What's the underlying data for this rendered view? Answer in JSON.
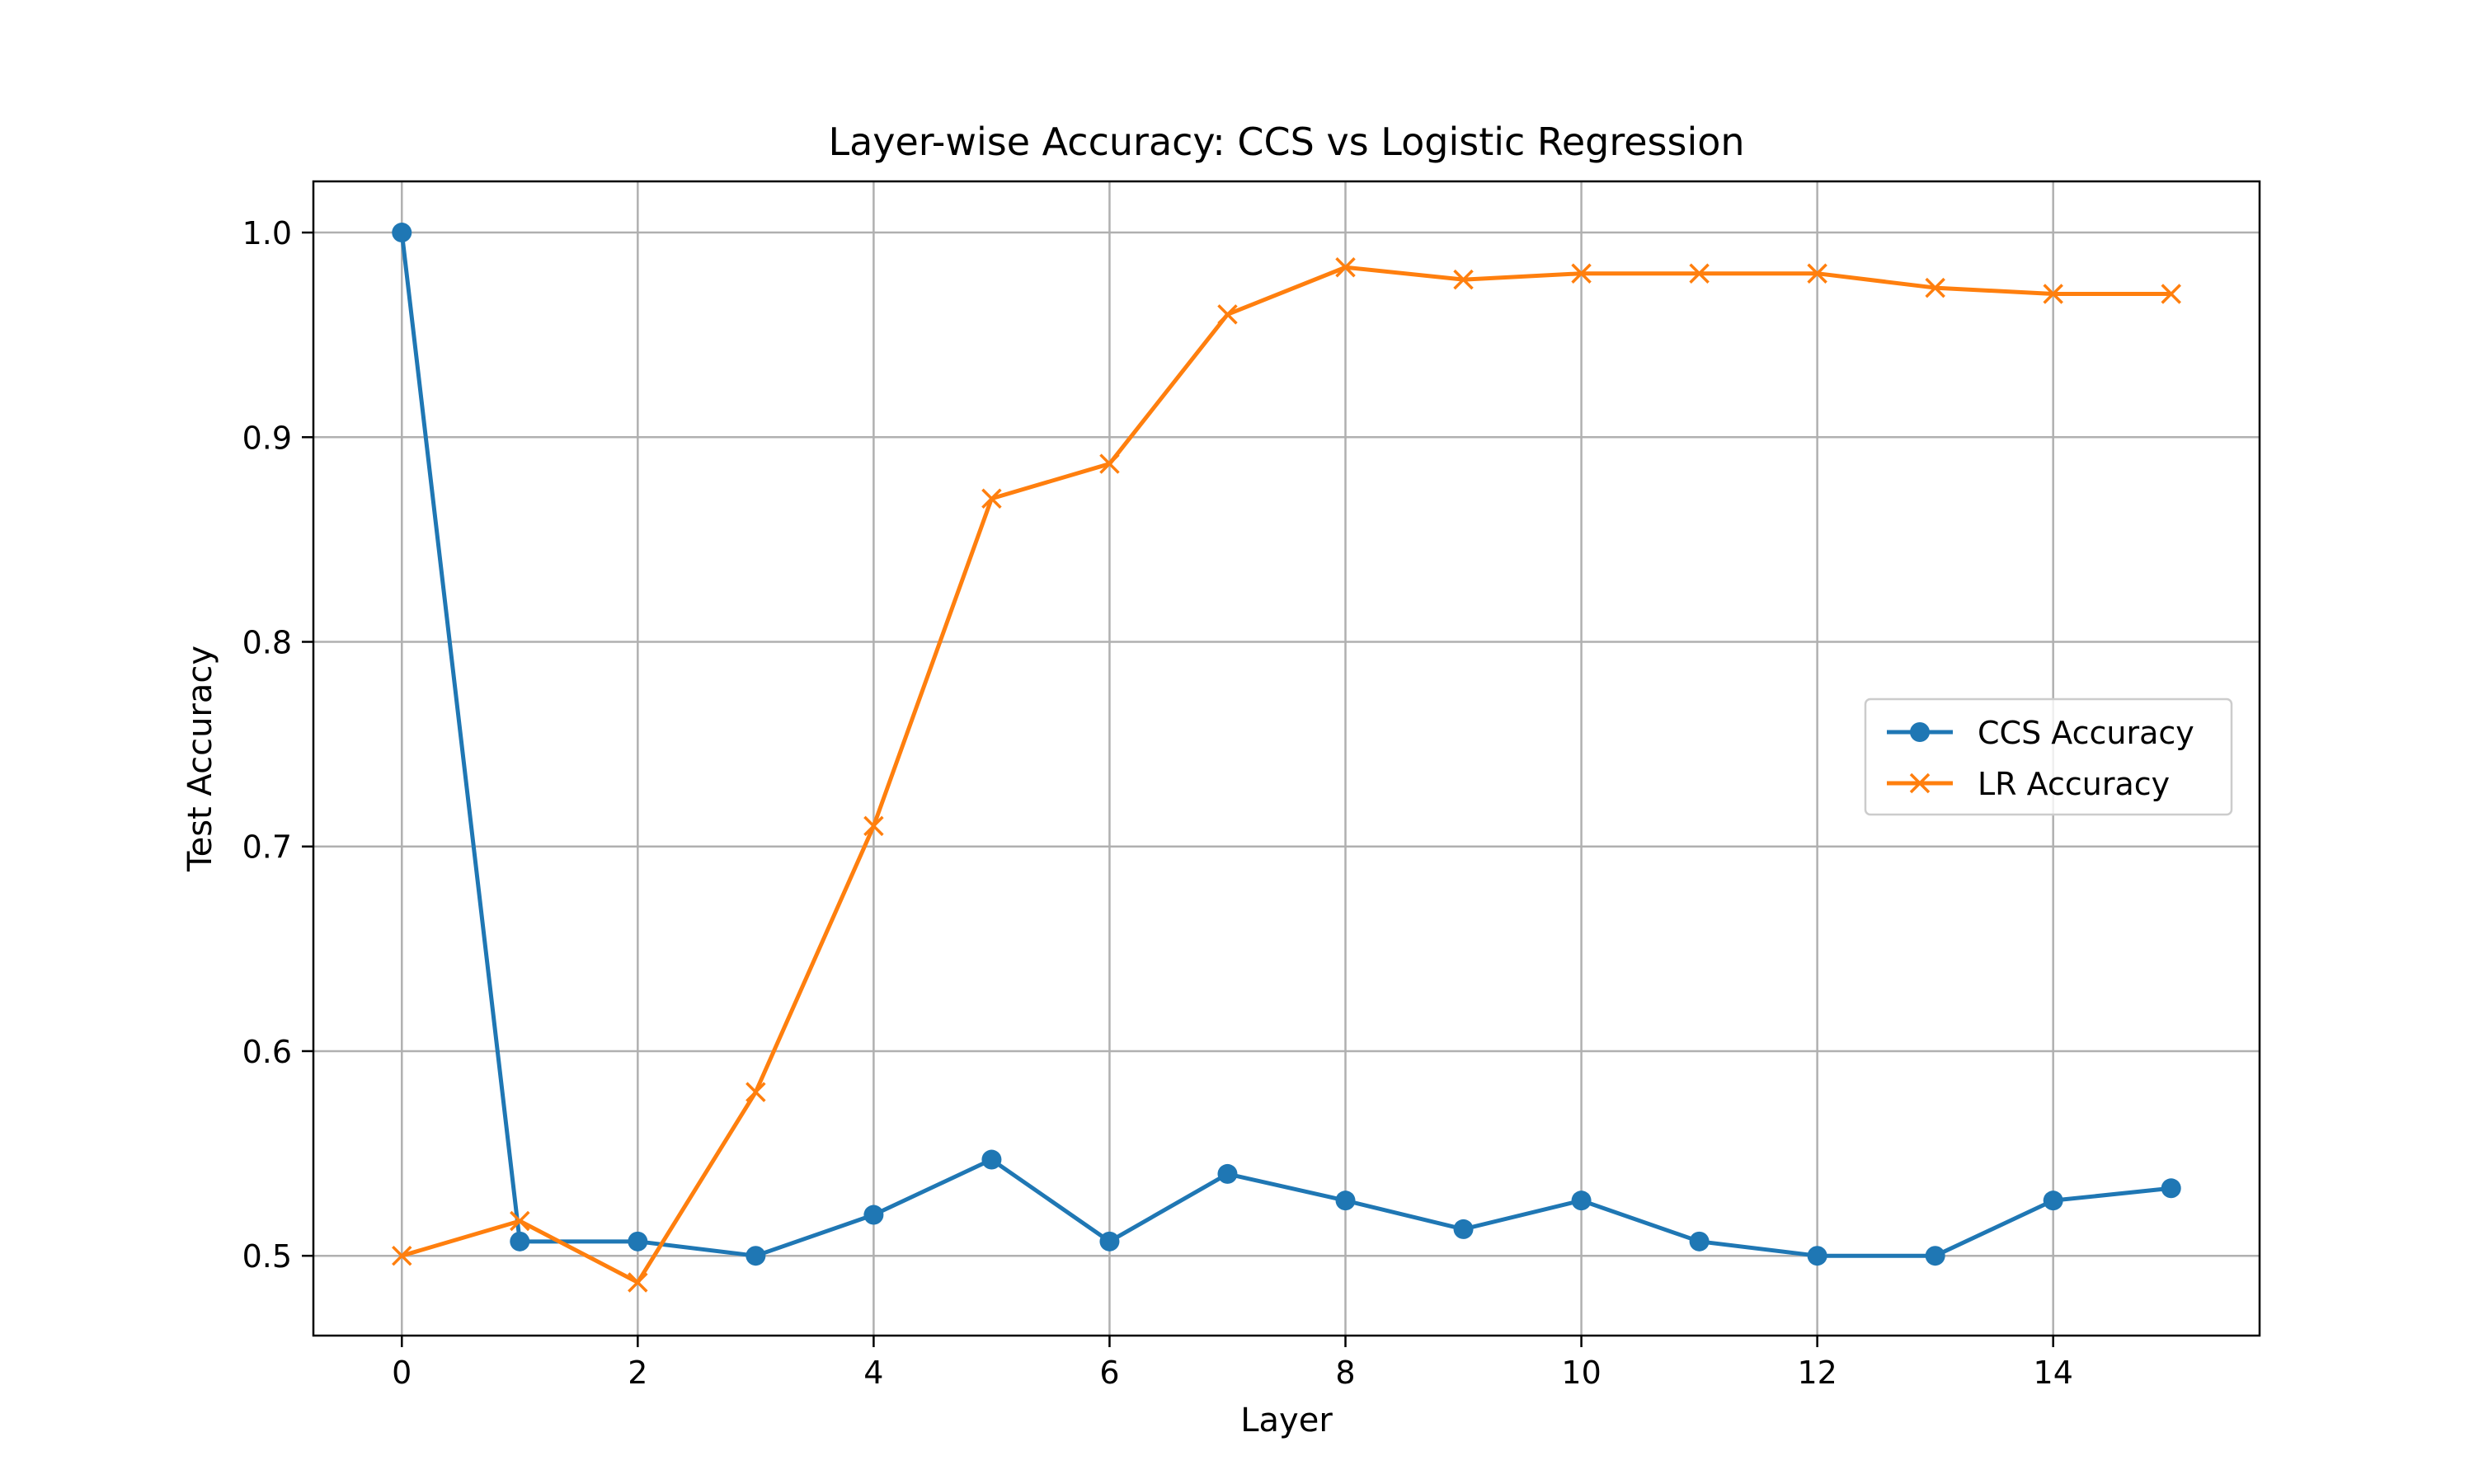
{
  "chart_data": {
    "type": "line",
    "title": "Layer-wise Accuracy: CCS vs Logistic Regression",
    "xlabel": "Layer",
    "ylabel": "Test Accuracy",
    "xlim": [
      -0.75,
      15.75
    ],
    "ylim": [
      0.461,
      1.025
    ],
    "xticks": [
      0,
      2,
      4,
      6,
      8,
      10,
      12,
      14
    ],
    "xtick_labels": [
      "0",
      "2",
      "4",
      "6",
      "8",
      "10",
      "12",
      "14"
    ],
    "yticks": [
      0.5,
      0.6,
      0.7,
      0.8,
      0.9,
      1.0
    ],
    "ytick_labels": [
      "0.5",
      "0.6",
      "0.7",
      "0.8",
      "0.9",
      "1.0"
    ],
    "grid": true,
    "legend_position": "center-right",
    "x": [
      0,
      1,
      2,
      3,
      4,
      5,
      6,
      7,
      8,
      9,
      10,
      11,
      12,
      13,
      14,
      15
    ],
    "series": [
      {
        "name": "CCS Accuracy",
        "color": "#1f77b4",
        "marker": "circle",
        "values": [
          1.0,
          0.507,
          0.507,
          0.5,
          0.52,
          0.547,
          0.507,
          0.54,
          0.527,
          0.513,
          0.527,
          0.507,
          0.5,
          0.5,
          0.527,
          0.533
        ]
      },
      {
        "name": "LR Accuracy",
        "color": "#ff7f0e",
        "marker": "x",
        "values": [
          0.5,
          0.517,
          0.487,
          0.58,
          0.71,
          0.87,
          0.887,
          0.96,
          0.983,
          0.977,
          0.98,
          0.98,
          0.98,
          0.973,
          0.97,
          0.97
        ]
      }
    ]
  }
}
